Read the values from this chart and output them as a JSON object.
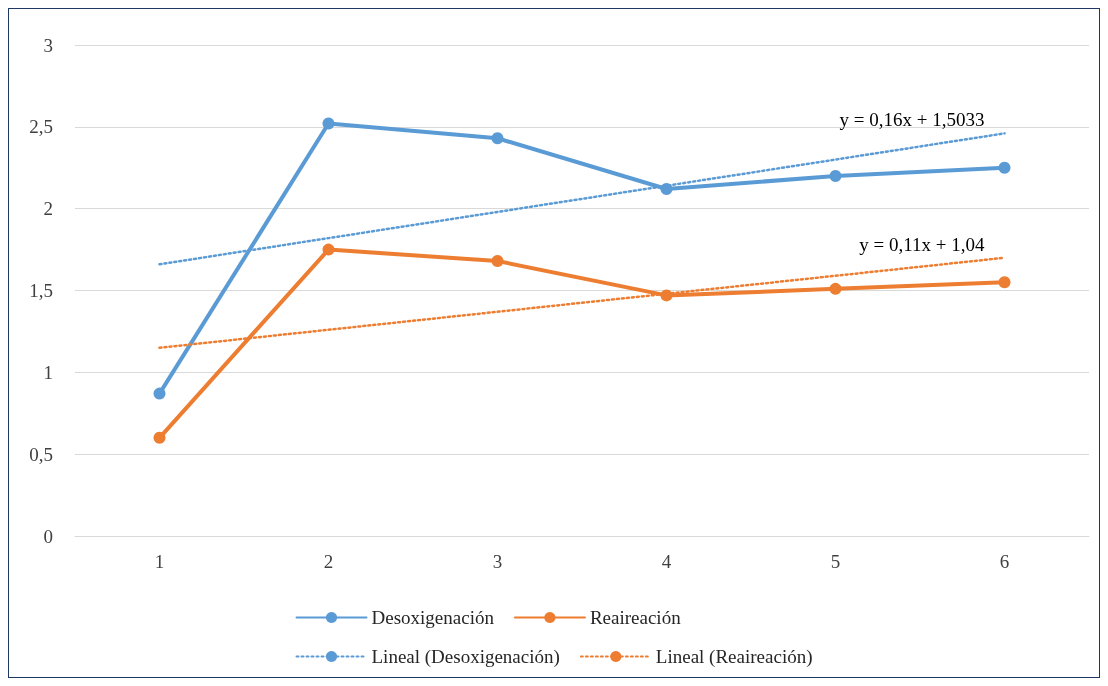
{
  "chart_data": {
    "type": "line",
    "categories": [
      "1",
      "2",
      "3",
      "4",
      "5",
      "6"
    ],
    "ylim": [
      0,
      3
    ],
    "yticks": [
      0,
      {
        "value": 0.5,
        "label": "0,5"
      },
      1,
      {
        "value": 1.5,
        "label": "1,5"
      },
      2,
      {
        "value": 2.5,
        "label": "2,5"
      },
      3
    ],
    "grid": "y",
    "legend": "bottom",
    "marker": "circle",
    "line_style": "solid",
    "series": [
      {
        "name": "Desoxigenación",
        "color": "#5b9bd5",
        "values": [
          0.87,
          2.52,
          2.43,
          2.12,
          2.2,
          2.25
        ]
      },
      {
        "name": "Reaireación",
        "color": "#ed7d31",
        "values": [
          0.6,
          1.75,
          1.68,
          1.47,
          1.51,
          1.55
        ]
      },
      {
        "name": "Lineal (Desoxigenación)",
        "color": "#5b9bd5",
        "marker": "none",
        "line_style": "dotted",
        "values": [
          1.66,
          1.82,
          1.98,
          2.14,
          2.3,
          2.46
        ]
      },
      {
        "name": "Lineal (Reaireación)",
        "color": "#ed7d31",
        "marker": "none",
        "line_style": "dotted",
        "values": [
          1.15,
          1.26,
          1.37,
          1.48,
          1.59,
          1.7
        ]
      }
    ],
    "annotations": [
      {
        "text": "y = 0,16x + 1,5033",
        "x": "6",
        "y": 2.46
      },
      {
        "text": "y = 0,11x + 1,04",
        "x": "6",
        "y": 1.7
      }
    ]
  }
}
